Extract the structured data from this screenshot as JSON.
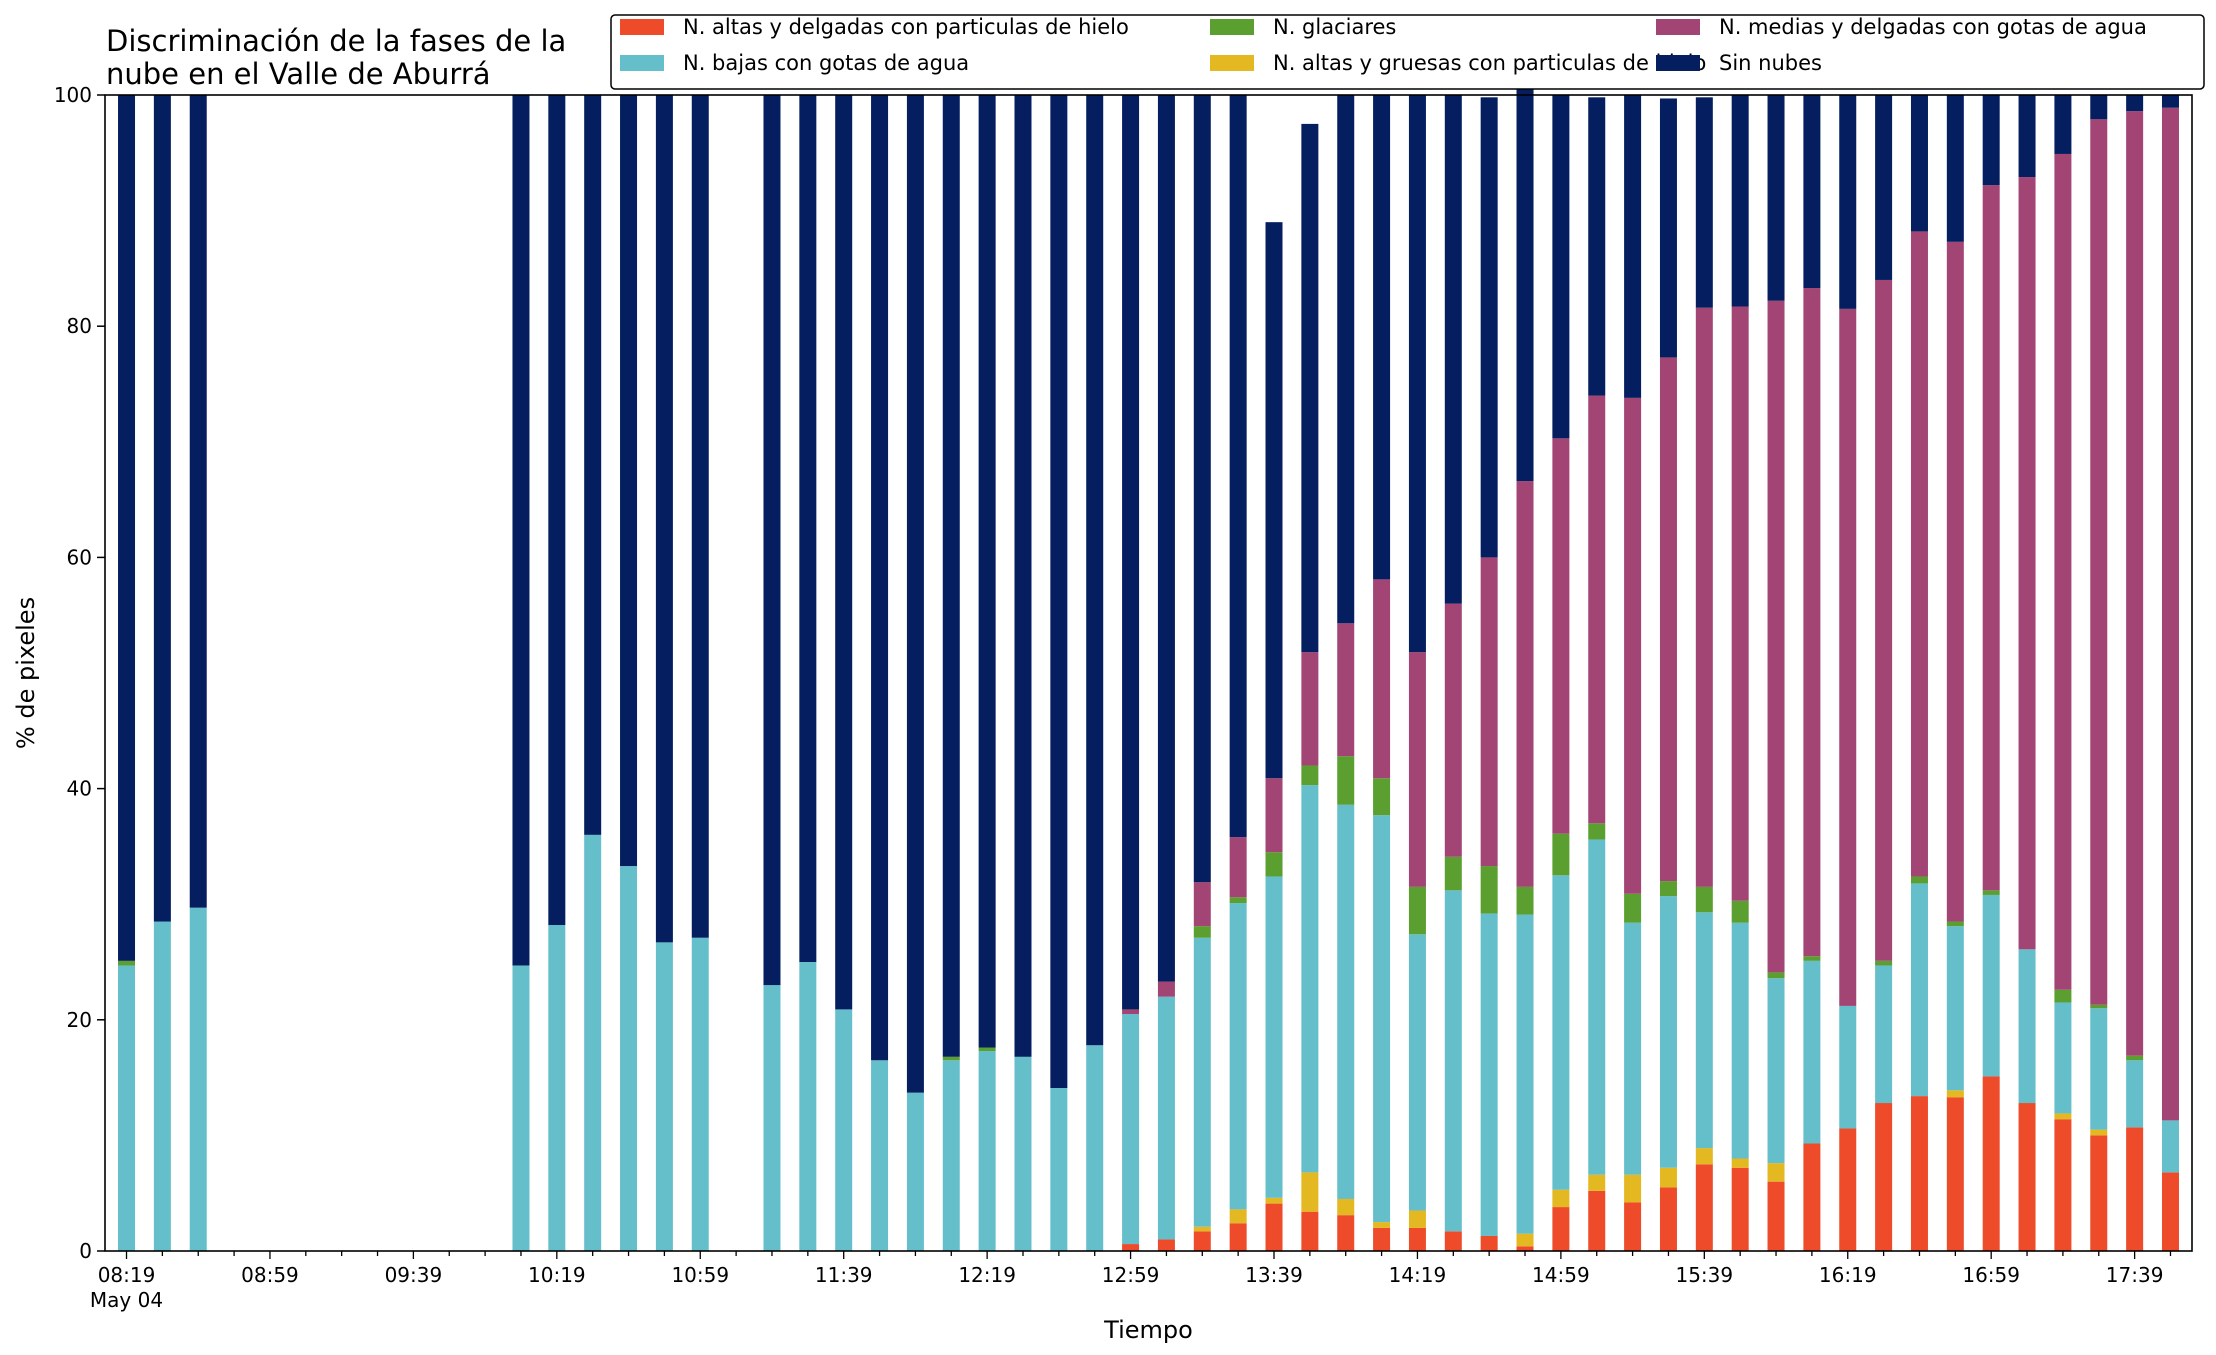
{
  "chart_data": {
    "type": "bar",
    "stacked": true,
    "title": [
      "Discriminación de la fases de la",
      "nube en el Valle de Aburrá"
    ],
    "xlabel": "Tiempo",
    "ylabel": "% de pixeles",
    "ylim": [
      0,
      100
    ],
    "yticks": [
      "0",
      "20",
      "40",
      "60",
      "80",
      "100"
    ],
    "xticks": [
      "08:19",
      "08:59",
      "09:39",
      "10:19",
      "10:59",
      "11:39",
      "12:19",
      "12:59",
      "13:39",
      "14:19",
      "14:59",
      "15:39",
      "16:19",
      "16:59",
      "17:39"
    ],
    "xtick_sublabel": "May 04",
    "grid": false,
    "legend_position": "top-right",
    "legend_order": [
      0,
      2,
      3,
      1,
      4,
      5
    ],
    "times": [
      "08:19",
      "08:29",
      "08:39",
      "08:49",
      "08:59",
      "09:09",
      "09:19",
      "09:29",
      "09:39",
      "09:49",
      "09:59",
      "10:09",
      "10:19",
      "10:29",
      "10:39",
      "10:49",
      "10:59",
      "11:09",
      "11:19",
      "11:29",
      "11:39",
      "11:49",
      "11:59",
      "12:09",
      "12:19",
      "12:29",
      "12:39",
      "12:49",
      "12:59",
      "13:09",
      "13:19",
      "13:29",
      "13:39",
      "13:49",
      "13:59",
      "14:09",
      "14:19",
      "14:29",
      "14:39",
      "14:49",
      "14:59",
      "15:09",
      "15:19",
      "15:29",
      "15:39",
      "15:49",
      "15:59",
      "16:09",
      "16:19",
      "16:29",
      "16:39",
      "16:49",
      "16:59",
      "17:09",
      "17:19",
      "17:29",
      "17:39",
      "17:49"
    ],
    "series": [
      {
        "name": "N. altas y delgadas con particulas de hielo",
        "color": "#ee4b2b",
        "values": [
          0,
          0,
          0,
          0,
          0,
          0,
          0,
          0,
          0,
          0,
          0,
          0,
          0,
          0,
          0,
          0,
          0,
          0,
          0,
          0,
          0,
          0,
          0,
          0,
          0,
          0,
          0,
          0,
          0.6,
          1.0,
          1.7,
          2.4,
          4.1,
          3.4,
          3.1,
          2.0,
          2.0,
          1.7,
          1.3,
          0.4,
          3.8,
          5.2,
          4.2,
          5.5,
          7.5,
          7.2,
          6.0,
          9.3,
          10.6,
          12.8,
          13.4,
          13.3,
          15.1,
          12.8,
          11.4,
          10.0,
          10.7,
          6.8
        ]
      },
      {
        "name": "N. altas y gruesas con particulas de hielo",
        "color": "#e4b820",
        "values": [
          0,
          0,
          0,
          0,
          0,
          0,
          0,
          0,
          0,
          0,
          0,
          0,
          0,
          0,
          0,
          0,
          0,
          0,
          0,
          0,
          0,
          0,
          0,
          0,
          0,
          0,
          0,
          0,
          0,
          0,
          0.4,
          1.2,
          0.5,
          3.4,
          1.4,
          0.5,
          1.5,
          0,
          0,
          1.1,
          1.5,
          1.4,
          2.4,
          1.7,
          1.4,
          0.8,
          1.6,
          0,
          0,
          0,
          0,
          0.6,
          0,
          0,
          0.5,
          0.5,
          0,
          0
        ]
      },
      {
        "name": "N. bajas con gotas de agua",
        "color": "#65bfcb",
        "values": [
          24.7,
          28.5,
          29.7,
          0,
          0,
          0,
          0,
          0,
          0,
          0,
          0,
          24.7,
          28.2,
          36.0,
          33.3,
          26.7,
          27.1,
          0,
          23.0,
          25.0,
          20.9,
          16.5,
          13.7,
          16.5,
          17.3,
          16.8,
          14.1,
          17.8,
          19.9,
          21.0,
          25.0,
          26.5,
          27.8,
          33.5,
          34.1,
          35.2,
          23.9,
          29.5,
          27.9,
          27.6,
          27.2,
          29.0,
          21.8,
          23.5,
          20.4,
          20.4,
          16.0,
          15.8,
          10.6,
          11.9,
          18.4,
          14.2,
          15.7,
          13.3,
          9.6,
          10.5,
          5.8,
          4.5
        ]
      },
      {
        "name": "N. glaciares",
        "color": "#5a9f2f",
        "values": [
          0.4,
          0,
          0,
          0,
          0,
          0,
          0,
          0,
          0,
          0,
          0,
          0,
          0,
          0,
          0,
          0,
          0,
          0,
          0,
          0,
          0,
          0,
          0,
          0.3,
          0.3,
          0,
          0,
          0,
          0,
          0,
          1.0,
          0.5,
          2.1,
          1.7,
          4.2,
          3.2,
          4.1,
          2.9,
          4.1,
          2.4,
          3.6,
          1.4,
          2.5,
          1.3,
          2.2,
          1.9,
          0.5,
          0.4,
          0,
          0.4,
          0.6,
          0.4,
          0.4,
          0,
          1.1,
          0.3,
          0.4,
          0
        ]
      },
      {
        "name": "N. medias y delgadas con gotas de agua",
        "color": "#a24575",
        "values": [
          0,
          0,
          0,
          0,
          0,
          0,
          0,
          0,
          0,
          0,
          0,
          0,
          0,
          0,
          0,
          0,
          0,
          0,
          0,
          0,
          0,
          0,
          0,
          0,
          0,
          0,
          0,
          0,
          0.4,
          1.3,
          3.8,
          5.2,
          6.4,
          9.8,
          11.5,
          17.2,
          20.3,
          21.9,
          26.7,
          35.1,
          34.2,
          37.0,
          42.9,
          45.3,
          50.1,
          51.4,
          58.1,
          57.8,
          60.3,
          58.9,
          55.8,
          58.8,
          61.0,
          66.8,
          72.3,
          76.6,
          81.7,
          87.6
        ]
      },
      {
        "name": "Sin nubes",
        "color": "#041e5f",
        "values": [
          74.9,
          71.5,
          70.3,
          0,
          0,
          0,
          0,
          0,
          0,
          0,
          0,
          75.3,
          71.8,
          64.0,
          66.7,
          73.3,
          72.9,
          0,
          77.0,
          75.0,
          79.1,
          83.5,
          86.3,
          83.2,
          82.4,
          83.2,
          85.9,
          82.2,
          79.1,
          76.7,
          68.1,
          64.2,
          48.1,
          45.7,
          45.7,
          41.9,
          48.2,
          44.0,
          39.8,
          35.8,
          29.7,
          25.8,
          26.2,
          22.4,
          18.2,
          18.3,
          17.8,
          16.7,
          18.5,
          16.0,
          11.8,
          12.7,
          7.8,
          7.1,
          5.1,
          2.1,
          1.4,
          1.1
        ]
      }
    ]
  }
}
